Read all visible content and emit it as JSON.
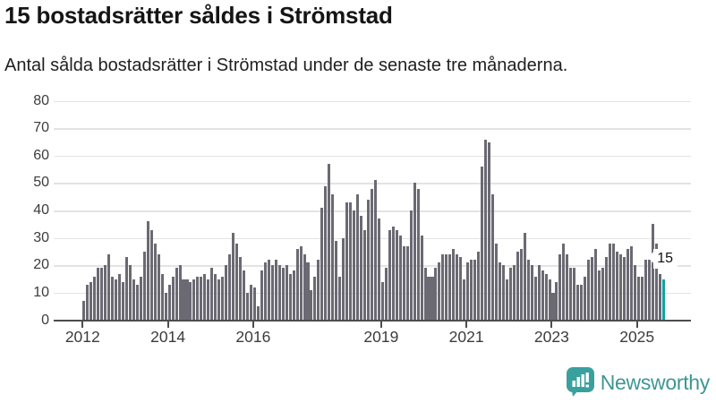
{
  "header": {
    "title": "15 bostadsrätter såldes i Strömstad",
    "subtitle": "Antal sålda bostadsrätter i Strömstad under de senaste tre månaderna."
  },
  "colors": {
    "bar": "#6b6a73",
    "highlight": "#12a1a2",
    "grid": "#e3e3e3",
    "axis": "#4d4d4d",
    "tick_text": "#3c3c3c",
    "logo_bubble": "#3aa09e",
    "logo_text": "#3f9695"
  },
  "logo": {
    "text": "Newsworthy",
    "icon": "newsworthy-bar-chart-bubble-icon"
  },
  "chart_data": {
    "type": "bar",
    "title": "15 bostadsrätter såldes i Strömstad",
    "xlabel": "",
    "ylabel": "",
    "x_interval": "month",
    "x_start": "2012-01",
    "x_end": "2025-08",
    "xticks": [
      2012,
      2014,
      2016,
      2019,
      2021,
      2023,
      2025
    ],
    "ylim": [
      0,
      80
    ],
    "yticks": [
      0,
      10,
      20,
      30,
      40,
      50,
      60,
      70,
      80
    ],
    "grid": "horizontal",
    "legend": "none",
    "highlight_last": {
      "value": 15,
      "label": "15"
    },
    "values_by_year": {
      "2012": [
        7,
        13,
        14,
        16,
        19,
        19,
        20,
        24,
        16,
        15,
        17,
        14
      ],
      "2013": [
        23,
        20,
        15,
        13,
        16,
        25,
        36,
        33,
        28,
        24,
        17,
        10
      ],
      "2014": [
        13,
        16,
        19,
        20,
        15,
        15,
        14,
        15,
        16,
        16,
        17,
        15
      ],
      "2015": [
        19,
        17,
        15,
        16,
        20,
        24,
        32,
        28,
        23,
        18,
        10,
        13
      ],
      "2016": [
        12,
        5,
        18,
        21,
        22,
        20,
        22,
        20,
        19,
        20,
        17,
        18
      ],
      "2017": [
        26,
        27,
        24,
        21,
        11,
        16,
        22,
        41,
        49,
        57,
        46,
        29
      ],
      "2018": [
        16,
        30,
        43,
        43,
        40,
        46,
        38,
        33,
        44,
        48,
        51,
        37
      ],
      "2019": [
        14,
        19,
        33,
        34,
        33,
        31,
        27,
        27,
        40,
        50,
        48,
        31
      ],
      "2020": [
        19,
        16,
        16,
        19,
        21,
        24,
        24,
        24,
        26,
        24,
        23,
        15
      ],
      "2021": [
        21,
        22,
        22,
        25,
        56,
        66,
        65,
        46,
        28,
        21,
        20,
        15
      ],
      "2022": [
        19,
        20,
        25,
        26,
        32,
        22,
        20,
        16,
        20,
        18,
        17,
        15
      ],
      "2023": [
        10,
        14,
        24,
        28,
        24,
        19,
        19,
        13,
        13,
        16,
        22,
        23
      ],
      "2024": [
        26,
        18,
        19,
        23,
        28,
        28,
        25,
        24,
        23,
        26,
        27,
        20
      ],
      "2025": [
        16,
        16,
        22,
        22,
        35,
        28,
        17,
        15
      ]
    }
  }
}
